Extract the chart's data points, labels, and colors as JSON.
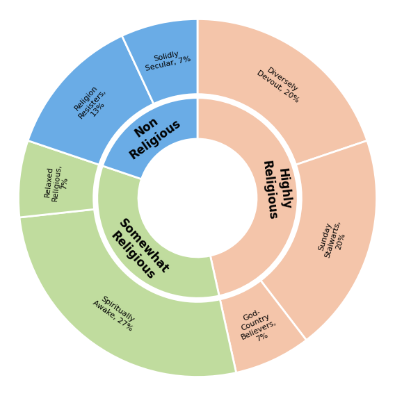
{
  "outer_labels": [
    "Diversely\nDevout, 20%",
    "Sunday\nStalwarts,\n20%",
    "God-\nCountry\nBelievers,\n7%",
    "Spiritually\nAwake, 27%",
    "Relaxed\nReligious,\n7%",
    "Religion\nResisters,\n13%",
    "Solidly\nSecular, 7%"
  ],
  "outer_values": [
    20,
    20,
    7,
    27,
    7,
    13,
    7
  ],
  "outer_colors": [
    "#f4c5aa",
    "#f4c5aa",
    "#f4c5aa",
    "#c0dc9e",
    "#c0dc9e",
    "#6aace6",
    "#6aace6"
  ],
  "inner_labels": [
    "Highly\nReligious",
    "Somewhat\nReligious",
    "Non\nReligious"
  ],
  "inner_values": [
    47,
    34,
    20
  ],
  "inner_colors": [
    "#f4c5aa",
    "#c0dc9e",
    "#6aace6"
  ],
  "background_color": "#ffffff",
  "text_color": "#000000",
  "separator_color": "#ffffff",
  "label_rotations": [
    60,
    -20,
    -70,
    -130,
    180,
    130,
    70
  ]
}
